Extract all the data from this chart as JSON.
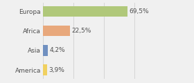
{
  "categories": [
    "America",
    "Asia",
    "Africa",
    "Europa"
  ],
  "values": [
    3.9,
    4.2,
    22.5,
    69.5
  ],
  "labels": [
    "3,9%",
    "4,2%",
    "22,5%",
    "69,5%"
  ],
  "bar_colors": [
    "#f0d060",
    "#7090c0",
    "#e8a87c",
    "#b0c87a"
  ],
  "background_color": "#f0f0f0",
  "xlim": [
    0,
    100
  ],
  "bar_height": 0.55,
  "label_fontsize": 6.5,
  "tick_fontsize": 6.5,
  "grid_color": "#d0d0d0",
  "text_color": "#505050"
}
